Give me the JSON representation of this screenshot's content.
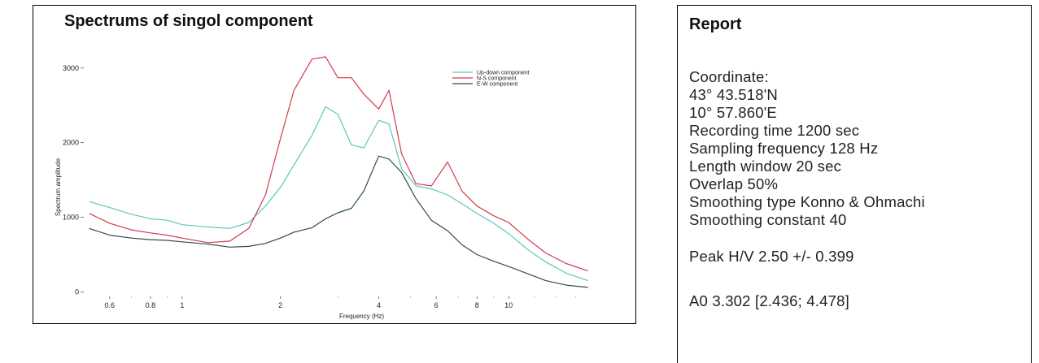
{
  "chart_data": {
    "type": "line",
    "title": "Spectrums of singol component",
    "xlabel": "Frequency (Hz)",
    "ylabel": "Spectrum amplitude",
    "xscale": "log",
    "xlim": [
      0.5,
      20
    ],
    "ylim": [
      -50,
      3400
    ],
    "x_ticks": [
      {
        "value": 0.6,
        "label": "0.6"
      },
      {
        "value": 0.8,
        "label": "0.8"
      },
      {
        "value": 1,
        "label": "1"
      },
      {
        "value": 2,
        "label": "2"
      },
      {
        "value": 4,
        "label": "4"
      },
      {
        "value": 6,
        "label": "6"
      },
      {
        "value": 8,
        "label": "8"
      },
      {
        "value": 10,
        "label": "10"
      }
    ],
    "y_ticks": [
      {
        "value": 0,
        "label": "0"
      },
      {
        "value": 1000,
        "label": "1000"
      },
      {
        "value": 2000,
        "label": "2000"
      },
      {
        "value": 3000,
        "label": "3000"
      }
    ],
    "legend_position": "top-right",
    "grid": false,
    "series": [
      {
        "name": "Up-down component",
        "color": "#5dc7b4",
        "x": [
          0.52,
          0.6,
          0.7,
          0.8,
          0.9,
          1.0,
          1.2,
          1.4,
          1.6,
          1.8,
          2.0,
          2.2,
          2.5,
          2.75,
          3.0,
          3.3,
          3.6,
          4.0,
          4.3,
          4.7,
          5.2,
          5.8,
          6.5,
          7.2,
          8.0,
          9.0,
          10.0,
          11.5,
          13.0,
          15.0,
          17.5
        ],
        "y": [
          1210,
          1130,
          1040,
          980,
          960,
          900,
          870,
          850,
          930,
          1150,
          1400,
          1700,
          2100,
          2480,
          2380,
          1970,
          1930,
          2300,
          2250,
          1650,
          1420,
          1380,
          1300,
          1180,
          1050,
          920,
          780,
          560,
          400,
          250,
          150
        ]
      },
      {
        "name": "N-S component",
        "color": "#d23a4a",
        "x": [
          0.52,
          0.6,
          0.7,
          0.8,
          0.9,
          1.0,
          1.2,
          1.4,
          1.6,
          1.8,
          2.0,
          2.2,
          2.5,
          2.75,
          3.0,
          3.3,
          3.6,
          4.0,
          4.3,
          4.7,
          5.2,
          5.8,
          6.5,
          7.2,
          8.0,
          9.0,
          10.0,
          11.5,
          13.0,
          15.0,
          17.5
        ],
        "y": [
          1050,
          920,
          830,
          790,
          760,
          720,
          660,
          680,
          850,
          1300,
          2050,
          2700,
          3120,
          3150,
          2870,
          2870,
          2650,
          2450,
          2700,
          1850,
          1450,
          1420,
          1740,
          1350,
          1150,
          1020,
          930,
          700,
          520,
          380,
          280
        ]
      },
      {
        "name": "E-W component",
        "color": "#2f4d4a",
        "x": [
          0.52,
          0.6,
          0.7,
          0.8,
          0.9,
          1.0,
          1.2,
          1.4,
          1.6,
          1.8,
          2.0,
          2.2,
          2.5,
          2.75,
          3.0,
          3.3,
          3.6,
          4.0,
          4.3,
          4.7,
          5.2,
          5.8,
          6.5,
          7.2,
          8.0,
          9.0,
          10.0,
          11.5,
          13.0,
          15.0,
          17.5
        ],
        "y": [
          850,
          760,
          720,
          700,
          690,
          670,
          640,
          600,
          610,
          650,
          720,
          800,
          860,
          980,
          1060,
          1120,
          1350,
          1820,
          1780,
          1600,
          1250,
          960,
          820,
          630,
          500,
          410,
          340,
          240,
          150,
          90,
          60
        ]
      }
    ]
  },
  "report": {
    "title": "Report",
    "lines": [
      {
        "text": "Coordinate:",
        "top": 77
      },
      {
        "text": "43° 43.518'N",
        "top": 99
      },
      {
        "text": "10° 57.860'E",
        "top": 121
      },
      {
        "text": "Recording time 1200 sec",
        "top": 143
      },
      {
        "text": "Sampling frequency 128 Hz",
        "top": 165
      },
      {
        "text": "Length window 20 sec",
        "top": 187
      },
      {
        "text": "Overlap 50%",
        "top": 209
      },
      {
        "text": "Smoothing type Konno & Ohmachi",
        "top": 231
      },
      {
        "text": "Smoothing constant 40",
        "top": 253
      },
      {
        "text": "Peak H/V 2.50 +/- 0.399",
        "top": 298
      },
      {
        "text": "A0 3.302 [2.436; 4.478]",
        "top": 353
      }
    ]
  }
}
